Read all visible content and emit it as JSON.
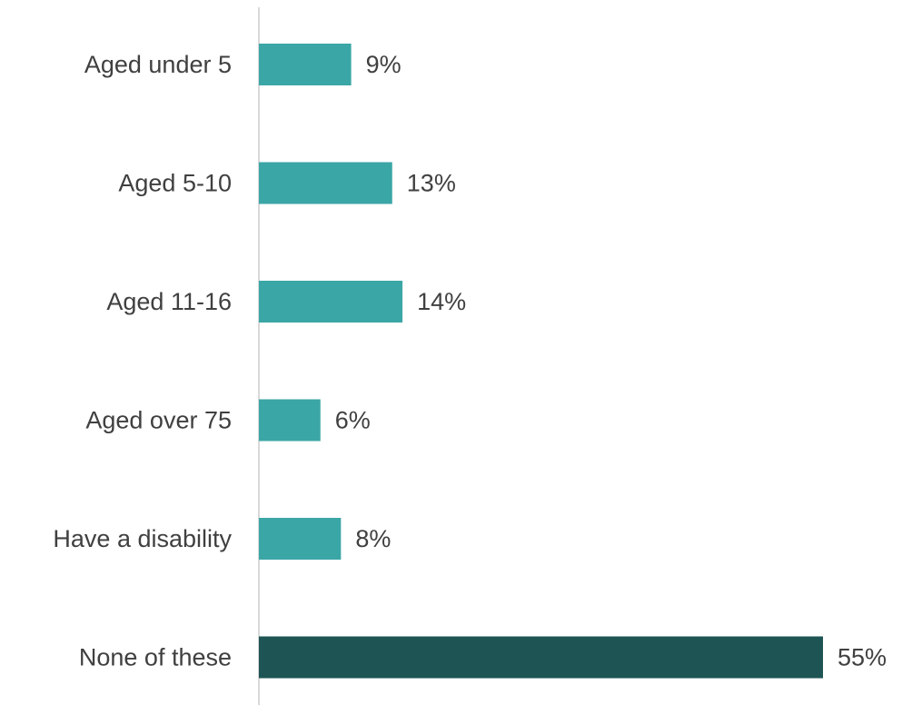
{
  "chart_data": {
    "type": "bar",
    "orientation": "horizontal",
    "categories": [
      "Aged under 5",
      "Aged 5-10",
      "Aged 11-16",
      "Aged over 75",
      "Have a disability",
      "None of these"
    ],
    "values": [
      9,
      13,
      14,
      6,
      8,
      55
    ],
    "value_labels": [
      "9%",
      "13%",
      "14%",
      "6%",
      "8%",
      "55%"
    ],
    "unit": "%",
    "title": "",
    "xlabel": "",
    "ylabel": "",
    "grid": false,
    "legend": "none",
    "colors": {
      "default_bar": "#3ba6a6",
      "highlight_bar": "#1e5454",
      "axis": "#d9d9d9",
      "text": "#404040"
    },
    "highlight_indices": [
      5
    ]
  }
}
